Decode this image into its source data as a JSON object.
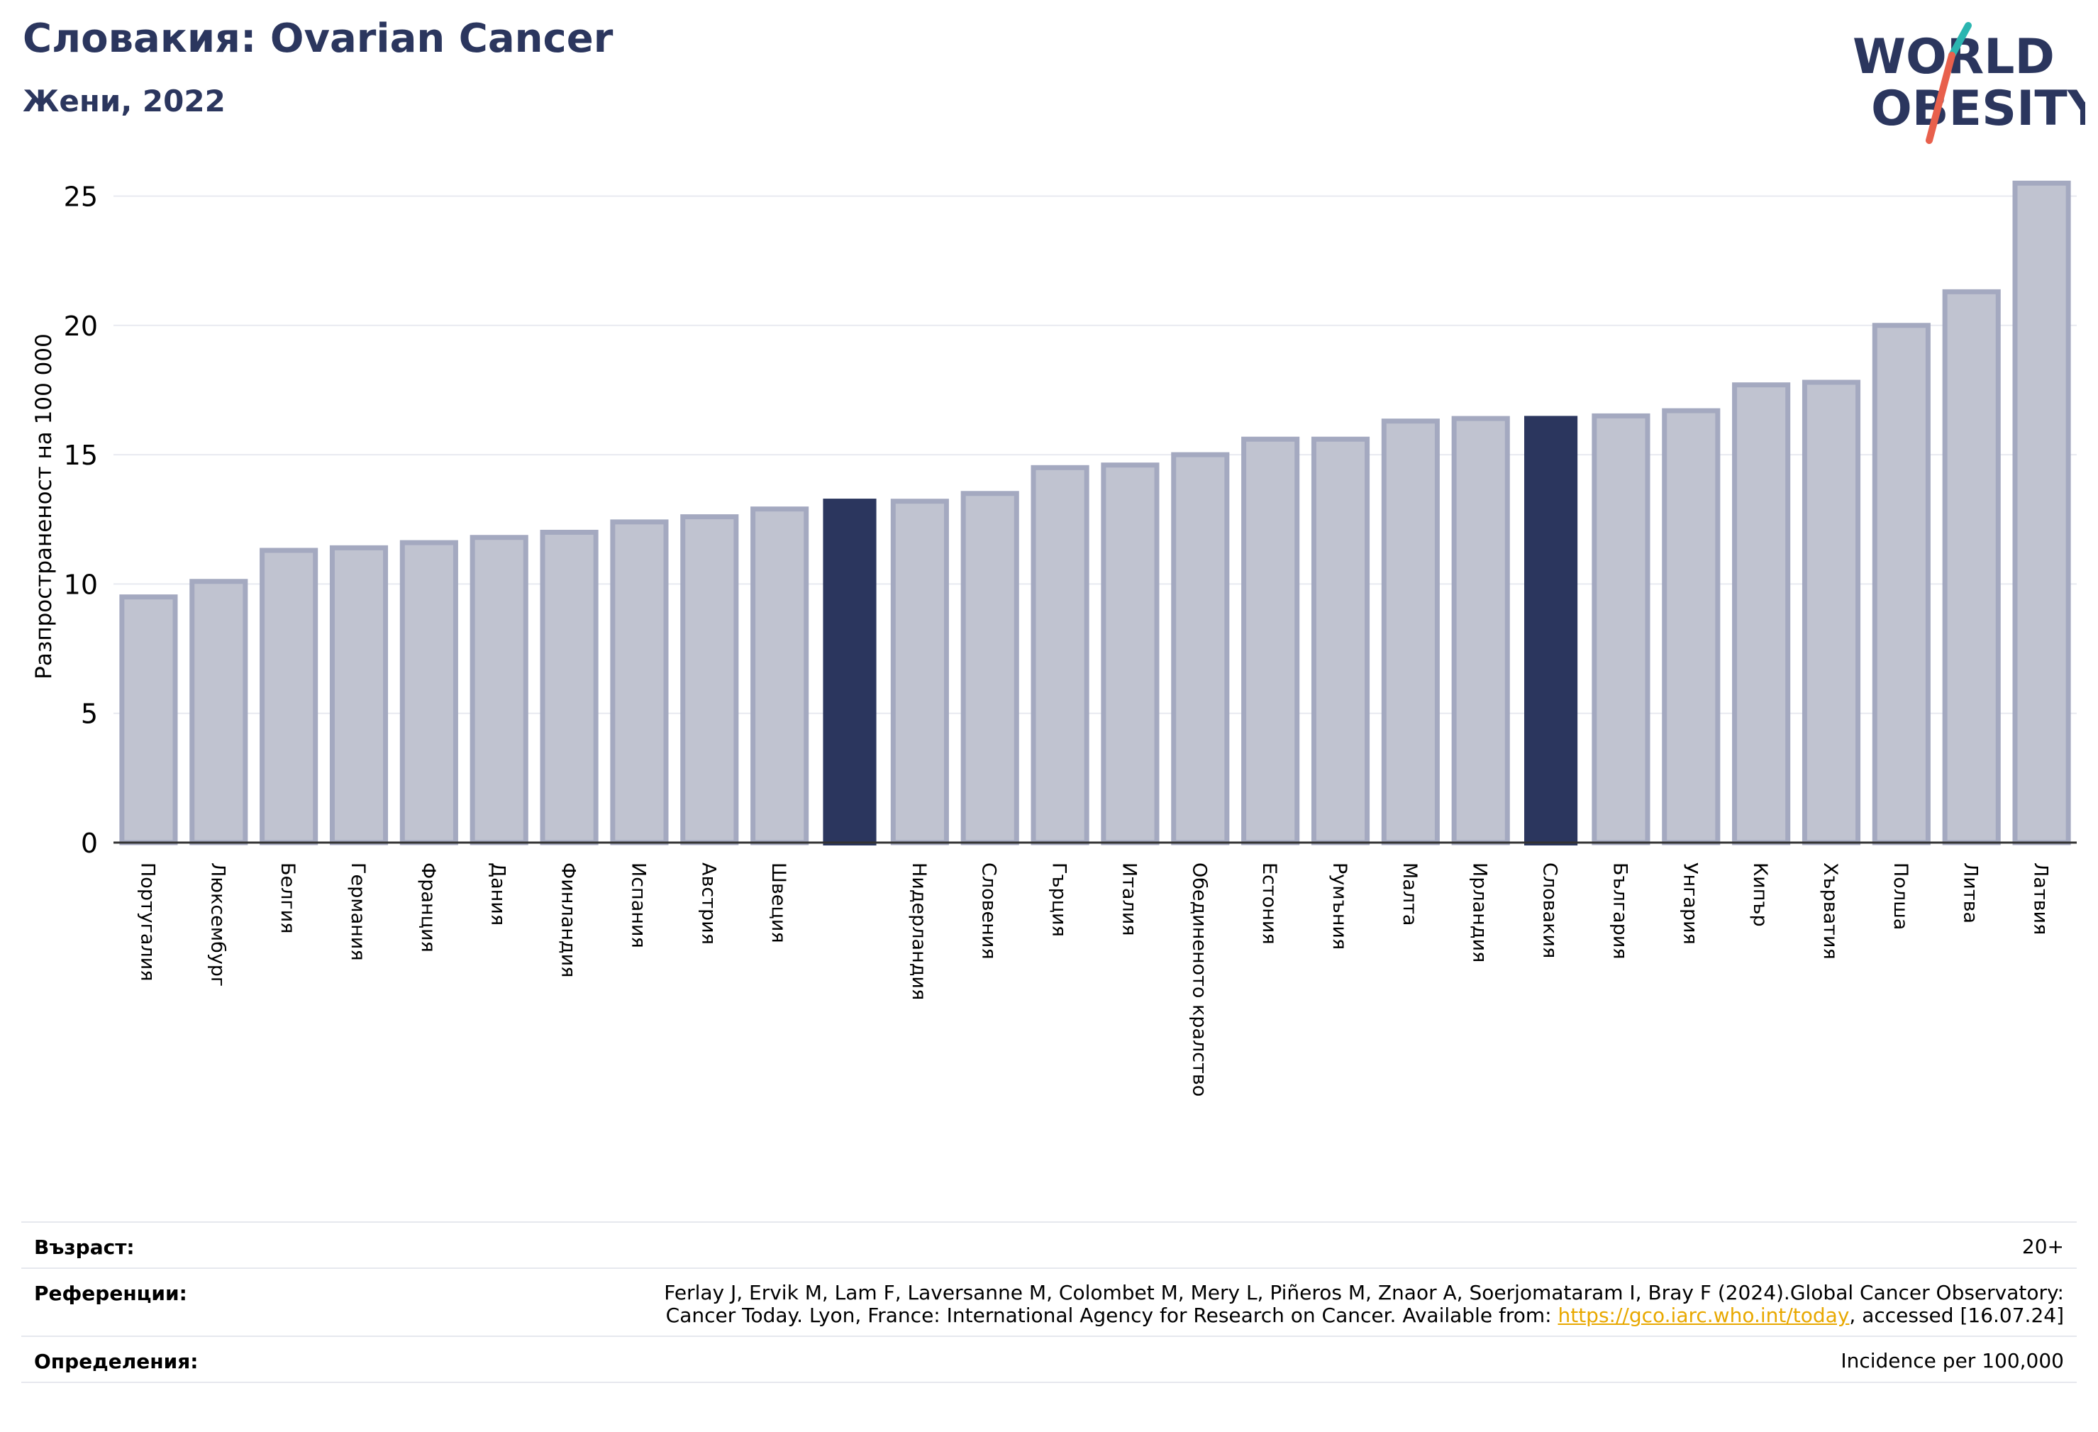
{
  "header": {
    "title": "Словакия: Ovarian Cancer",
    "subtitle": "Жени, 2022"
  },
  "logo": {
    "line1": "WORLD",
    "line2": "OBESITY",
    "colors": {
      "text": "#2b365e",
      "slash_red": "#e8604c",
      "slash_teal": "#2bb5b0"
    }
  },
  "chart_data": {
    "type": "bar",
    "ylabel": "Разпространеност  на 100 000",
    "ylim": [
      0,
      26
    ],
    "yticks": [
      0,
      5,
      10,
      15,
      20,
      25
    ],
    "grid": true,
    "categories": [
      "Португалия",
      "Люксембург",
      "Белгия",
      "Германия",
      "Франция",
      "Дания",
      "Финландия",
      "Испания",
      "Австрия",
      "Швеция",
      "",
      "Нидерландия",
      "Словения",
      "Гърция",
      "Италия",
      "Обединеното кралство",
      "Естония",
      "Румъния",
      "Малта",
      "Ирландия",
      "Словакия",
      "България",
      "Унгария",
      "Кипър",
      "Хърватия",
      "Полша",
      "Литва",
      "Латвия"
    ],
    "values": [
      9.5,
      10.1,
      11.3,
      11.4,
      11.6,
      11.8,
      12.0,
      12.4,
      12.6,
      12.9,
      13.3,
      13.2,
      13.5,
      14.5,
      14.6,
      15.0,
      15.6,
      15.6,
      16.3,
      16.4,
      16.5,
      16.5,
      16.7,
      17.7,
      17.8,
      20.0,
      21.3,
      25.5
    ],
    "highlighted": [
      10,
      20
    ],
    "colors": {
      "bar": "#c0c3d0",
      "bar_edge": "#a4a9c0",
      "highlight": "#2b365e"
    }
  },
  "info": {
    "age_label": "Възраст:",
    "age_value": "20+",
    "ref_label": "Референции:",
    "ref_line1": "Ferlay J, Ervik M, Lam F, Laversanne M, Colombet M, Mery L, Piñeros M, Znaor A, Soerjomataram I, Bray F (2024).Global Cancer Observatory:",
    "ref_line2_pre": "Cancer Today. Lyon, France: International Agency for Research on Cancer. Available from: ",
    "ref_link": "https://gco.iarc.who.int/today",
    "ref_line2_post": ", accessed [16.07.24]",
    "def_label": "Определения:",
    "def_value": "Incidence per 100,000"
  }
}
